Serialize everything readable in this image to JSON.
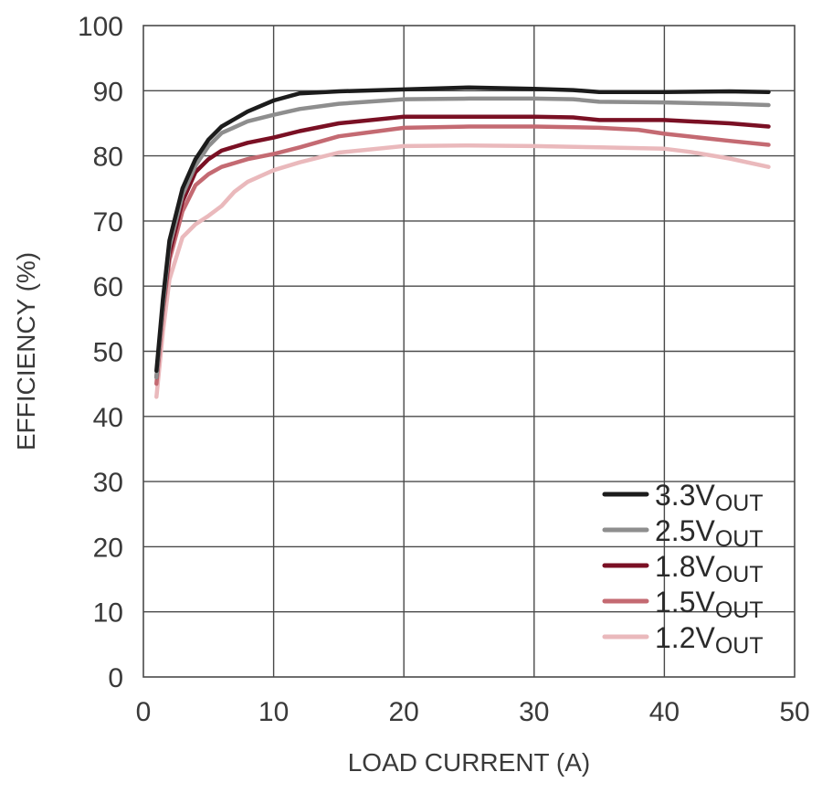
{
  "chart_data": {
    "type": "line",
    "title": "",
    "xlabel": "LOAD CURRENT (A)",
    "ylabel": "EFFICIENCY (%)",
    "xlim": [
      0,
      50
    ],
    "ylim": [
      0,
      100
    ],
    "xticks": [
      0,
      10,
      20,
      30,
      40,
      50
    ],
    "yticks": [
      0,
      10,
      20,
      30,
      40,
      50,
      60,
      70,
      80,
      90,
      100
    ],
    "grid": true,
    "legend_position": "bottom-right",
    "series": [
      {
        "name": "3.3V",
        "name_sub": "OUT",
        "color": "#1c1c1c",
        "x": [
          1,
          1.5,
          2,
          3,
          4,
          5,
          6,
          8,
          10,
          12,
          15,
          20,
          25,
          30,
          33,
          35,
          40,
          45,
          48
        ],
        "y": [
          47,
          58,
          67,
          75,
          79.5,
          82.5,
          84.5,
          86.8,
          88.5,
          89.6,
          89.9,
          90.2,
          90.5,
          90.3,
          90.1,
          89.8,
          89.8,
          89.9,
          89.8
        ]
      },
      {
        "name": "2.5V",
        "name_sub": "OUT",
        "color": "#8e8e8e",
        "x": [
          1,
          1.5,
          2,
          3,
          4,
          5,
          6,
          8,
          10,
          12,
          15,
          20,
          25,
          30,
          33,
          35,
          40,
          45,
          48
        ],
        "y": [
          46,
          57,
          66,
          74,
          78.5,
          81.5,
          83.5,
          85.3,
          86.3,
          87.2,
          88,
          88.7,
          88.8,
          88.8,
          88.7,
          88.3,
          88.2,
          88.0,
          87.8
        ]
      },
      {
        "name": "1.8V",
        "name_sub": "OUT",
        "color": "#7a1024",
        "x": [
          1,
          1.5,
          2,
          3,
          4,
          5,
          6,
          8,
          10,
          12,
          15,
          20,
          25,
          30,
          33,
          35,
          40,
          45,
          48
        ],
        "y": [
          46,
          57,
          65,
          73,
          77.5,
          79.5,
          80.8,
          82,
          82.8,
          83.8,
          85,
          86,
          86,
          86,
          85.9,
          85.5,
          85.5,
          85.0,
          84.5
        ]
      },
      {
        "name": "1.5V",
        "name_sub": "OUT",
        "color": "#c46a72",
        "x": [
          1,
          1.5,
          2,
          3,
          4,
          5,
          6,
          8,
          10,
          12,
          15,
          20,
          25,
          30,
          33,
          35,
          38,
          40,
          45,
          48
        ],
        "y": [
          45,
          56,
          64,
          71.5,
          75.5,
          77.2,
          78.3,
          79.5,
          80.3,
          81.3,
          83,
          84.3,
          84.5,
          84.5,
          84.4,
          84.3,
          84.0,
          83.4,
          82.3,
          81.7
        ]
      },
      {
        "name": "1.2V",
        "name_sub": "OUT",
        "color": "#eab9bc",
        "x": [
          1,
          1.5,
          2,
          3,
          4,
          5,
          6,
          7,
          8,
          10,
          12,
          15,
          20,
          25,
          30,
          35,
          40,
          42,
          45,
          48
        ],
        "y": [
          43,
          53,
          61,
          67.5,
          69.5,
          70.8,
          72.3,
          74.5,
          76,
          77.8,
          79,
          80.5,
          81.5,
          81.6,
          81.5,
          81.3,
          81.1,
          80.6,
          79.6,
          78.3
        ]
      }
    ]
  }
}
